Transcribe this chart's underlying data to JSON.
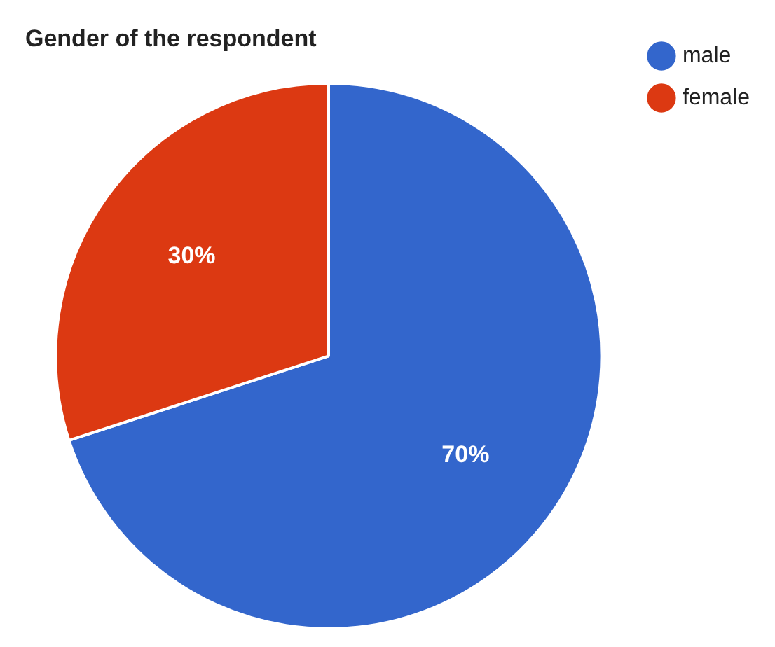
{
  "chart_data": {
    "type": "pie",
    "title": "Gender of the respondent",
    "categories": [
      "male",
      "female"
    ],
    "values": [
      70,
      30
    ],
    "colors": [
      "#3366cc",
      "#dc3912"
    ],
    "legend": "top right",
    "value_labels": [
      "70%",
      "30%"
    ]
  }
}
